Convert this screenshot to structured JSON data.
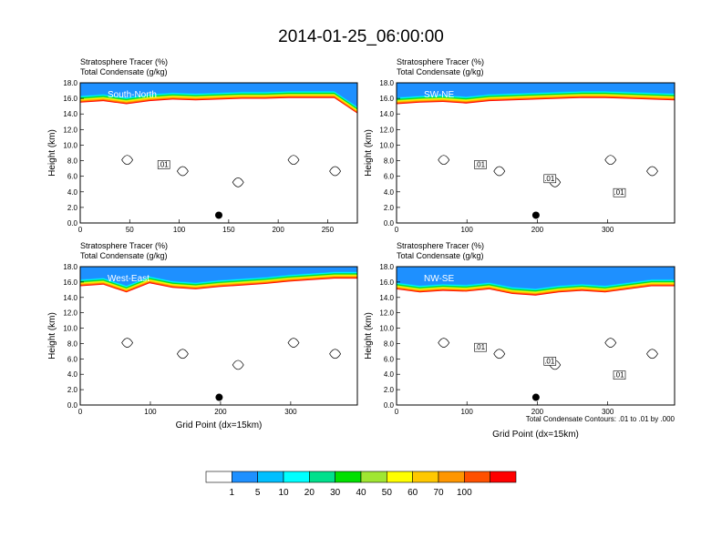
{
  "title": "2014-01-25_06:00:00",
  "colorbar": {
    "levels": [
      "1",
      "5",
      "10",
      "20",
      "30",
      "40",
      "50",
      "60",
      "70",
      "100"
    ],
    "colors": [
      "#ffffff",
      "#1e90ff",
      "#00bfff",
      "#00ffff",
      "#00e08c",
      "#00e000",
      "#a0e632",
      "#ffff00",
      "#ffc800",
      "#ff9600",
      "#ff5000",
      "#ff0000"
    ]
  },
  "note": "Total Condensate Contours: .01 to .01 by .000",
  "chart_data": [
    {
      "type": "heatmap",
      "panel": "top-left",
      "label": "South-North",
      "left_string_1": "Stratosphere Tracer   (%)",
      "left_string_2": "Total Condensate   (g/kg)",
      "ylabel": "Height (km)",
      "xlabel": "",
      "xlim": [
        0,
        280
      ],
      "ylim": [
        0,
        18
      ],
      "xticks": [
        "0",
        "50",
        "100",
        "150",
        "200",
        "250"
      ],
      "yticks": [
        "0.0",
        "2.0",
        "4.0",
        "6.0",
        "8.0",
        "10.0",
        "12.0",
        "14.0",
        "16.0",
        "18.0"
      ],
      "tracer_base_km": [
        15.4,
        15.6,
        15.2,
        15.6,
        15.8,
        15.7,
        15.8,
        15.9,
        15.9,
        16.0,
        16.0,
        16.0,
        14.0
      ],
      "contour_labels": [
        ".01"
      ],
      "marker": {
        "x": 140,
        "y": 1.0
      }
    },
    {
      "type": "heatmap",
      "panel": "top-right",
      "label": "SW-NE",
      "left_string_1": "Stratosphere Tracer   (%)",
      "left_string_2": "Total Condensate   (g/kg)",
      "ylabel": "Height (km)",
      "xlabel": "",
      "xlim": [
        0,
        395
      ],
      "ylim": [
        0,
        18
      ],
      "xticks": [
        "0",
        "100",
        "200",
        "300"
      ],
      "yticks": [
        "0.0",
        "2.0",
        "4.0",
        "6.0",
        "8.0",
        "10.0",
        "12.0",
        "14.0",
        "16.0",
        "18.0"
      ],
      "tracer_base_km": [
        15.2,
        15.4,
        15.5,
        15.3,
        15.6,
        15.7,
        15.8,
        15.9,
        16.0,
        16.0,
        15.9,
        15.8,
        15.7
      ],
      "contour_labels": [
        ".01",
        ".01",
        ".01"
      ],
      "marker": {
        "x": 198,
        "y": 1.0
      }
    },
    {
      "type": "heatmap",
      "panel": "bottom-left",
      "label": "West-East",
      "left_string_1": "Stratosphere Tracer   (%)",
      "left_string_2": "Total Condensate   (g/kg)",
      "ylabel": "Height (km)",
      "xlabel": "Grid Point (dx=15km)",
      "xlim": [
        0,
        395
      ],
      "ylim": [
        0,
        18
      ],
      "xticks": [
        "0",
        "100",
        "200",
        "300"
      ],
      "yticks": [
        "0.0",
        "2.0",
        "4.0",
        "6.0",
        "8.0",
        "10.0",
        "12.0",
        "14.0",
        "16.0",
        "18.0"
      ],
      "tracer_base_km": [
        15.4,
        15.6,
        14.6,
        15.8,
        15.2,
        15.0,
        15.3,
        15.5,
        15.7,
        16.0,
        16.2,
        16.4,
        16.4
      ],
      "contour_labels": [],
      "marker": {
        "x": 198,
        "y": 1.0
      }
    },
    {
      "type": "heatmap",
      "panel": "bottom-right",
      "label": "NW-SE",
      "left_string_1": "Stratosphere Tracer   (%)",
      "left_string_2": "Total Condensate   (g/kg)",
      "ylabel": "Height (km)",
      "xlabel": "Grid Point (dx=15km)",
      "xlim": [
        0,
        395
      ],
      "ylim": [
        0,
        18
      ],
      "xticks": [
        "0",
        "100",
        "200",
        "300"
      ],
      "yticks": [
        "0.0",
        "2.0",
        "4.0",
        "6.0",
        "8.0",
        "10.0",
        "12.0",
        "14.0",
        "16.0",
        "18.0"
      ],
      "tracer_base_km": [
        15.0,
        14.6,
        14.8,
        14.7,
        15.0,
        14.4,
        14.2,
        14.6,
        14.8,
        14.6,
        15.0,
        15.4,
        15.4
      ],
      "contour_labels": [
        ".01",
        ".01",
        ".01"
      ],
      "marker": {
        "x": 198,
        "y": 1.0
      }
    }
  ]
}
